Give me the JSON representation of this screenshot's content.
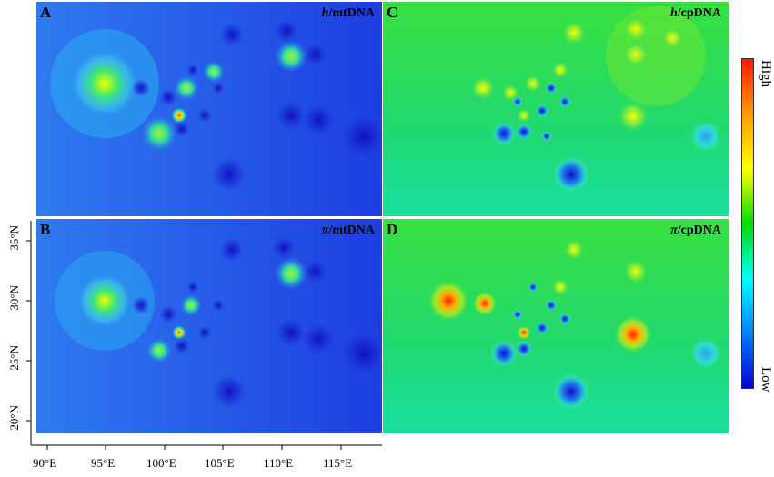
{
  "panels": {
    "A": {
      "letter": "A",
      "title_var": "h",
      "title_rest": "/mtDNA",
      "scheme": "mt"
    },
    "B": {
      "letter": "B",
      "title_var": "π",
      "title_rest": "/mtDNA",
      "scheme": "mt"
    },
    "C": {
      "letter": "C",
      "title_var": "h",
      "title_rest": "/cpDNA",
      "scheme": "cp"
    },
    "D": {
      "letter": "D",
      "title_var": "π",
      "title_rest": "/cpDNA",
      "scheme": "cp"
    }
  },
  "colorbar": {
    "high_label": "High",
    "low_label": "Low",
    "colors": [
      "#ff1a00",
      "#ff9900",
      "#ffff00",
      "#00dd00",
      "#00ffff",
      "#0080ff",
      "#0000dd"
    ]
  },
  "x_axis": {
    "ticks": [
      "90°E",
      "95°E",
      "100°E",
      "105°E",
      "110°E",
      "115°E"
    ]
  },
  "y_axis": {
    "ticks": [
      "35°N",
      "30°N",
      "25°N",
      "20°N"
    ]
  },
  "colors": {
    "mt_background": "#1d4fe6",
    "cp_background": "#22dc4a"
  }
}
